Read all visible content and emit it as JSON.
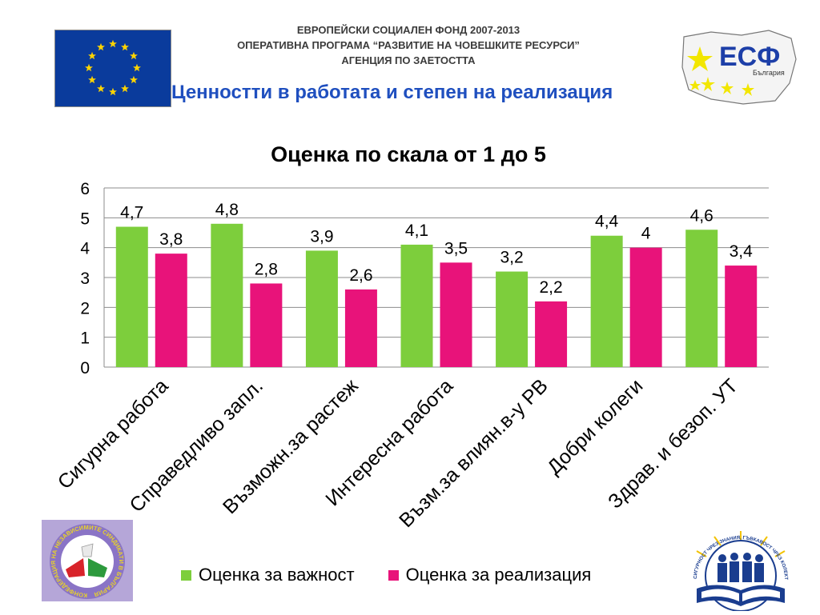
{
  "header": {
    "line1": "ЕВРОПЕЙСКИ СОЦИАЛЕН ФОНД 2007-2013",
    "line2": "ОПЕРАТИВНА ПРОГРАМА “РАЗВИТИЕ НА ЧОВЕШКИТЕ РЕСУРСИ”",
    "line3": "АГЕНЦИЯ ПО ЗАЕТОСТТА",
    "slide_title": "Ценностти в работата и степен на реализация"
  },
  "logos": {
    "esf_text": "ЕСФ",
    "esf_subtext": "България",
    "union_ring_text": "КОНФЕДЕРАЦИЯ НА НЕЗАВИСИМИТЕ СИНДИКАТИ В БЪЛГАРИЯ",
    "book_ring_text": "СИГУРНОСТ ЧРЕЗ ЗНАНИЯ, ГЪВКАВОСТ ЧРЕЗ КОЛЕКТИВНОТО ТРУДОВО ДОГОВАРЯНЕ"
  },
  "colors": {
    "importance": "#7dce3c",
    "realization": "#e8137a",
    "eu_blue": "#0a3b9c",
    "eu_star": "#ffd400",
    "title_blue": "#1f4fbf"
  },
  "chart_data": {
    "type": "bar",
    "title": "Оценка по скала от 1 до 5",
    "categories": [
      "Сигурна работа",
      "Справедливо запл.",
      "Възможн.за растеж",
      "Интересна работа",
      "Възм.за влиян.в-у РВ",
      "Добри колеги",
      "Здрав. и безоп. УТ"
    ],
    "series": [
      {
        "name": "Оценка за важност",
        "values": [
          4.7,
          4.8,
          3.9,
          4.1,
          3.2,
          4.4,
          4.6
        ],
        "labels": [
          "4,7",
          "4,8",
          "3,9",
          "4,1",
          "3,2",
          "4,4",
          "4,6"
        ]
      },
      {
        "name": "Оценка за реализация",
        "values": [
          3.8,
          2.8,
          2.6,
          3.5,
          2.2,
          4,
          3.4
        ],
        "labels": [
          "3,8",
          "2,8",
          "2,6",
          "3,5",
          "2,2",
          "4",
          "3,4"
        ]
      }
    ],
    "ylim": [
      0,
      6
    ],
    "yticks": [
      0,
      1,
      2,
      3,
      4,
      5,
      6
    ],
    "grid": true,
    "legend_position": "bottom",
    "xlabel": "",
    "ylabel": ""
  }
}
